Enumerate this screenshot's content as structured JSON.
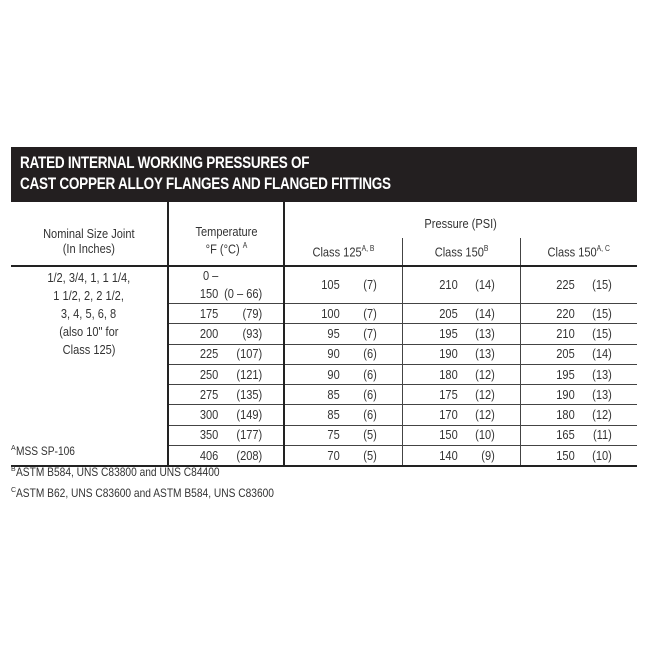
{
  "title": [
    "RATED INTERNAL WORKING PRESSURES OF",
    "CAST COPPER ALLOY FLANGES AND FLANGED FITTINGS"
  ],
  "headers": {
    "size": [
      "Nominal Size Joint",
      "(In Inches)"
    ],
    "temp": [
      "Temperature",
      "°F (°C)"
    ],
    "temp_sup": "A",
    "pressure": "Pressure (PSI)",
    "classes": [
      {
        "label": "Class 125",
        "sup": "A, B"
      },
      {
        "label": "Class 150",
        "sup": "B"
      },
      {
        "label": "Class 150",
        "sup": "A, C"
      }
    ]
  },
  "sizes": [
    "1/2, 3/4, 1, 1 1/4,",
    "1 1/2,  2, 2 1/2,",
    "3, 4, 5, 6, 8",
    "(also 10\" for",
    "Class 125)"
  ],
  "rows": [
    {
      "f": "0 – 150",
      "c": "(0 – 66)",
      "p": [
        [
          "105",
          "(7)"
        ],
        [
          "210",
          "(14)"
        ],
        [
          "225",
          "(15)"
        ]
      ]
    },
    {
      "f": "175",
      "c": "(79)",
      "p": [
        [
          "100",
          "(7)"
        ],
        [
          "205",
          "(14)"
        ],
        [
          "220",
          "(15)"
        ]
      ]
    },
    {
      "f": "200",
      "c": "(93)",
      "p": [
        [
          "95",
          "(7)"
        ],
        [
          "195",
          "(13)"
        ],
        [
          "210",
          "(15)"
        ]
      ]
    },
    {
      "f": "225",
      "c": "(107)",
      "p": [
        [
          "90",
          "(6)"
        ],
        [
          "190",
          "(13)"
        ],
        [
          "205",
          "(14)"
        ]
      ]
    },
    {
      "f": "250",
      "c": "(121)",
      "p": [
        [
          "90",
          "(6)"
        ],
        [
          "180",
          "(12)"
        ],
        [
          "195",
          "(13)"
        ]
      ]
    },
    {
      "f": "275",
      "c": "(135)",
      "p": [
        [
          "85",
          "(6)"
        ],
        [
          "175",
          "(12)"
        ],
        [
          "190",
          "(13)"
        ]
      ]
    },
    {
      "f": "300",
      "c": "(149)",
      "p": [
        [
          "85",
          "(6)"
        ],
        [
          "170",
          "(12)"
        ],
        [
          "180",
          "(12)"
        ]
      ]
    },
    {
      "f": "350",
      "c": "(177)",
      "p": [
        [
          "75",
          "(5)"
        ],
        [
          "150",
          "(10)"
        ],
        [
          "165",
          "(11)"
        ]
      ]
    },
    {
      "f": "406",
      "c": "(208)",
      "p": [
        [
          "70",
          "(5)"
        ],
        [
          "140",
          "(9)"
        ],
        [
          "150",
          "(10)"
        ]
      ]
    }
  ],
  "footnotes": [
    {
      "mark": "A",
      "text": "MSS SP-106"
    },
    {
      "mark": "B",
      "text": "ASTM B584, UNS C83800 and UNS C84400"
    },
    {
      "mark": "C",
      "text": "ASTM B62, UNS C83600 and ASTM B584, UNS C83600"
    }
  ]
}
